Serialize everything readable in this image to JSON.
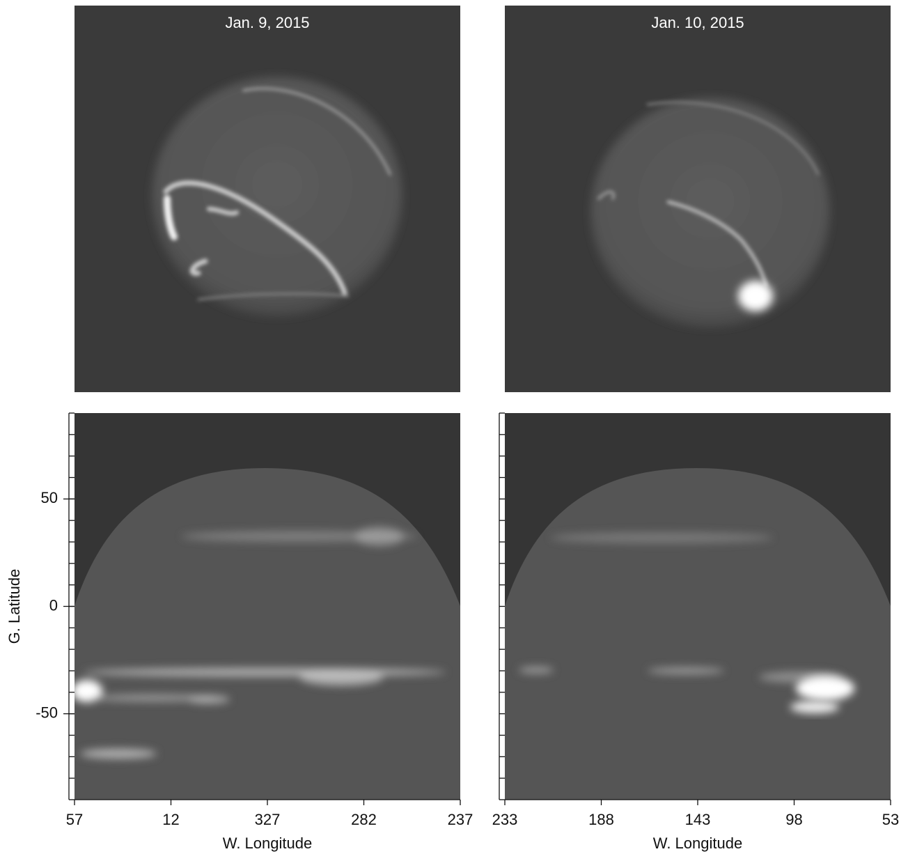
{
  "chart_data": [
    {
      "type": "map",
      "title": "Jan. 9, 2015",
      "xlabel": "W. Longitude",
      "ylabel": "G. Latitude",
      "xlim": [
        57,
        -123
      ],
      "xticks": [
        57,
        12,
        {
          "value": -33,
          "label": "327"
        },
        {
          "value": -78,
          "label": "282"
        },
        {
          "value": -123,
          "label": "237"
        }
      ],
      "ylim": [
        -90,
        90
      ],
      "yticks": [
        -50,
        0,
        50
      ],
      "yminorticks": [
        -90,
        -80,
        -70,
        -60,
        -50,
        -40,
        -30,
        -20,
        -10,
        0,
        10,
        20,
        30,
        40,
        50,
        60,
        70,
        80,
        90
      ]
    },
    {
      "type": "map",
      "title": "Jan. 10, 2015",
      "xlabel": "W. Longitude",
      "xlim": [
        233,
        53
      ],
      "xticks": [
        233,
        188,
        143,
        98,
        53
      ],
      "ylim": [
        -90,
        90
      ],
      "yminorticks": [
        -90,
        -80,
        -70,
        -60,
        -50,
        -40,
        -30,
        -20,
        -10,
        0,
        10,
        20,
        30,
        40,
        50,
        60,
        70,
        80,
        90
      ]
    }
  ]
}
